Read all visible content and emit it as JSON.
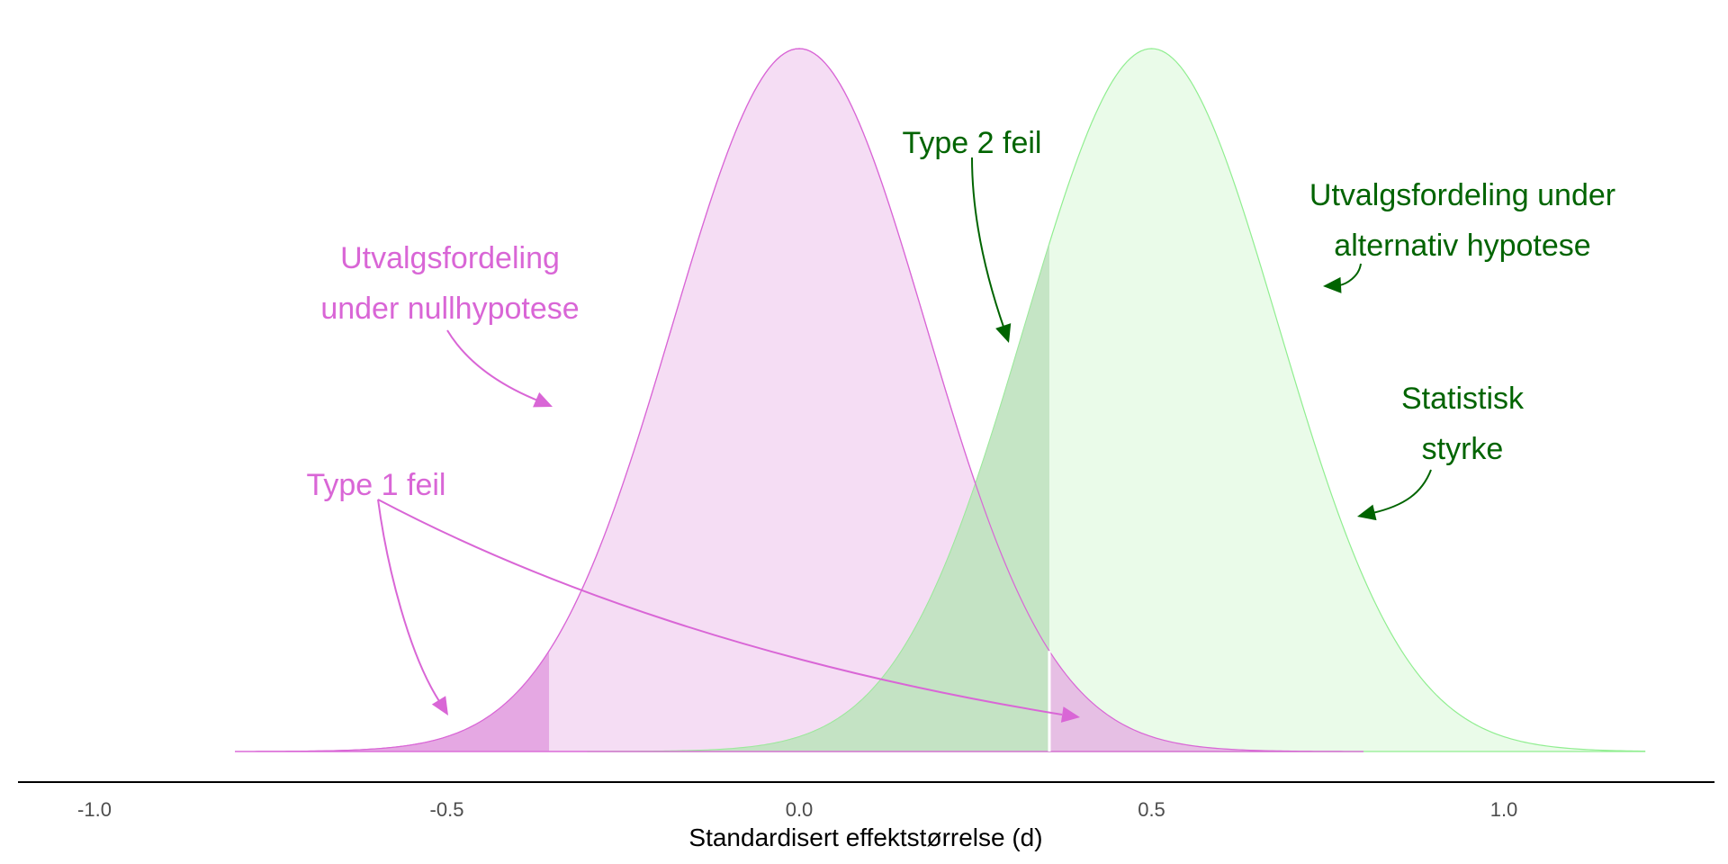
{
  "chart_data": {
    "type": "area",
    "xlabel": "Standardisert effektstørrelse (d)",
    "x_ticks": [
      -1.0,
      -0.5,
      0.0,
      0.5,
      1.0
    ],
    "x_tick_labels": [
      "-1.0",
      "-0.5",
      "0.0",
      "0.5",
      "1.0"
    ],
    "xlim": [
      -1.0,
      1.2
    ],
    "grid": false,
    "series": [
      {
        "mean": 0.0,
        "sd": 0.18,
        "x_range": [
          -0.8,
          0.8
        ],
        "fill": "#f5ddf4",
        "line": "#d966d6"
      },
      {
        "mean": 0.5,
        "sd": 0.18,
        "x_range": [
          -0.3,
          1.2
        ],
        "fill": "#e3f9e2",
        "line": "#90ee90"
      }
    ],
    "critical_values": [
      -0.355,
      0.355
    ],
    "regions": {
      "type1_fill": "#e5a8e3",
      "type2_fill": "#b8deb8"
    },
    "annotations": [
      {
        "lines": [
          "Utvalgsfordeling",
          "under nullhypotese"
        ],
        "color": "#d966d6"
      },
      {
        "lines": [
          "Type 1 feil"
        ],
        "color": "#d966d6"
      },
      {
        "lines": [
          "Type 2 feil"
        ],
        "color": "#006400"
      },
      {
        "lines": [
          "Utvalgsfordeling under",
          "alternativ hypotese"
        ],
        "color": "#006400"
      },
      {
        "lines": [
          "Statistisk",
          "styrke"
        ],
        "color": "#006400"
      }
    ]
  }
}
